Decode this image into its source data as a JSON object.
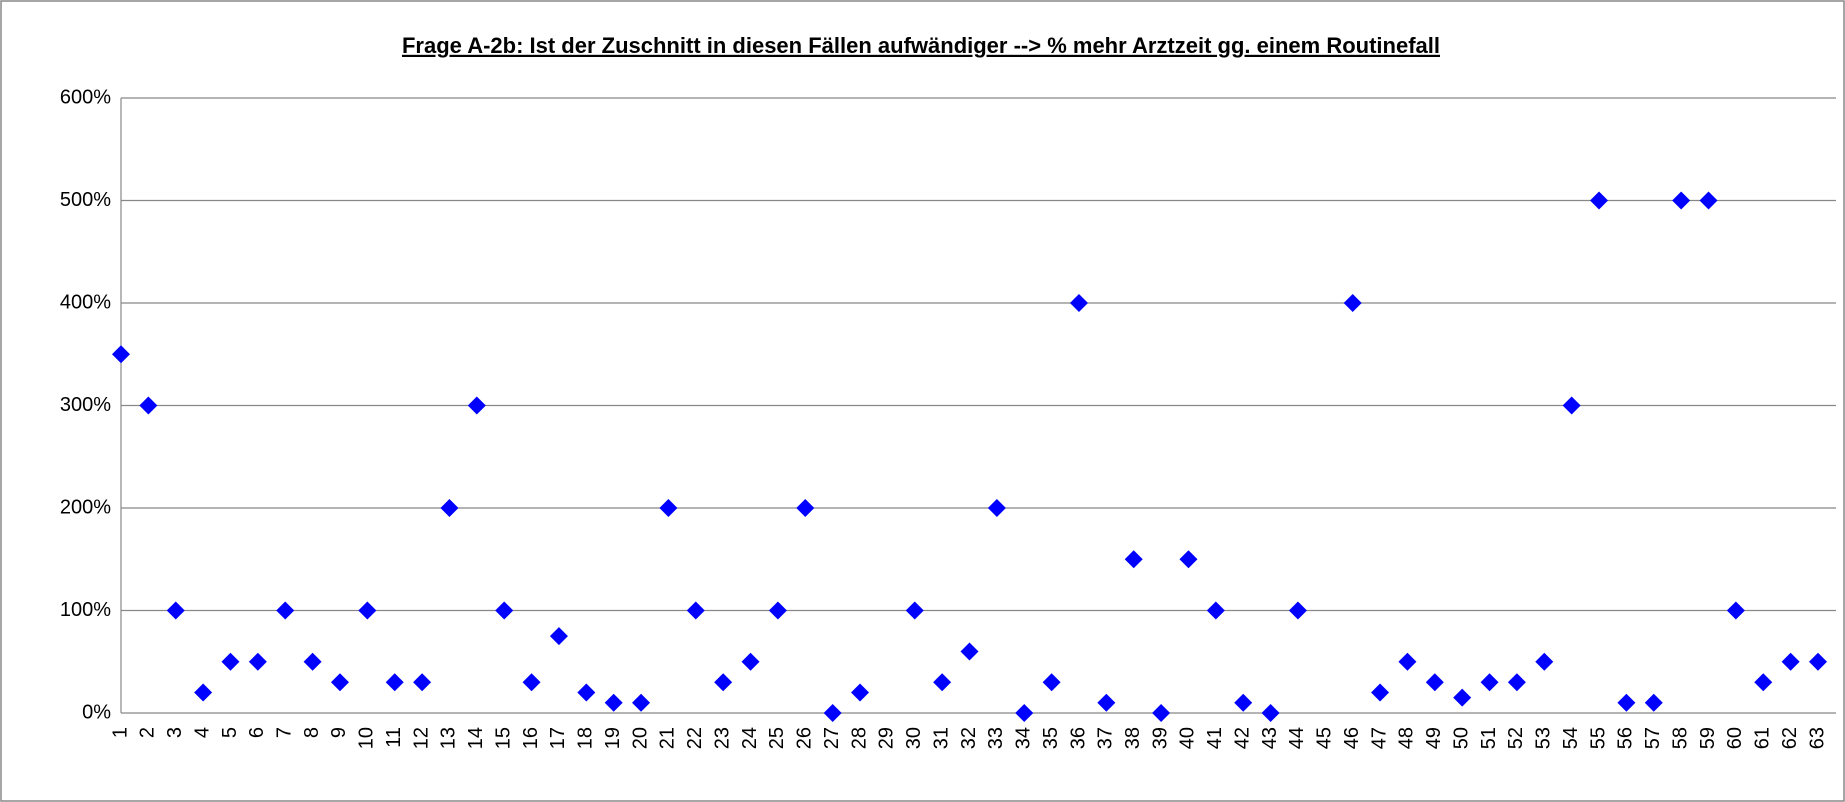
{
  "chart_data": {
    "type": "scatter",
    "title": "Frage A-2b: Ist der Zuschnitt in diesen Fällen aufwändiger --> % mehr Arztzeit gg. einem Routinefall",
    "categories": [
      "1",
      "2",
      "3",
      "4",
      "5",
      "6",
      "7",
      "8",
      "9",
      "10",
      "11",
      "12",
      "13",
      "14",
      "15",
      "16",
      "17",
      "18",
      "19",
      "20",
      "21",
      "22",
      "23",
      "24",
      "25",
      "26",
      "27",
      "28",
      "29",
      "30",
      "31",
      "32",
      "33",
      "34",
      "35",
      "36",
      "37",
      "38",
      "39",
      "40",
      "41",
      "42",
      "43",
      "44",
      "45",
      "46",
      "47",
      "48",
      "49",
      "50",
      "51",
      "52",
      "53",
      "54",
      "55",
      "56",
      "57",
      "58",
      "59",
      "60",
      "61",
      "62",
      "63"
    ],
    "values": [
      350,
      300,
      100,
      20,
      50,
      50,
      100,
      50,
      30,
      100,
      30,
      30,
      200,
      300,
      100,
      30,
      75,
      20,
      10,
      10,
      200,
      100,
      30,
      50,
      100,
      200,
      0,
      20,
      null,
      100,
      30,
      60,
      200,
      0,
      30,
      400,
      10,
      150,
      0,
      150,
      100,
      10,
      0,
      100,
      null,
      400,
      20,
      50,
      30,
      15,
      30,
      30,
      50,
      300,
      500,
      10,
      10,
      500,
      500,
      100,
      30,
      50,
      50
    ],
    "color": "#0000ff",
    "ylim": [
      0,
      600
    ],
    "yticks": [
      {
        "value": 0,
        "label": "0%"
      },
      {
        "value": 100,
        "label": "100%"
      },
      {
        "value": 200,
        "label": "200%"
      },
      {
        "value": 300,
        "label": "300%"
      },
      {
        "value": 400,
        "label": "400%"
      },
      {
        "value": 500,
        "label": "500%"
      },
      {
        "value": 600,
        "label": "600%"
      }
    ],
    "grid": true
  }
}
